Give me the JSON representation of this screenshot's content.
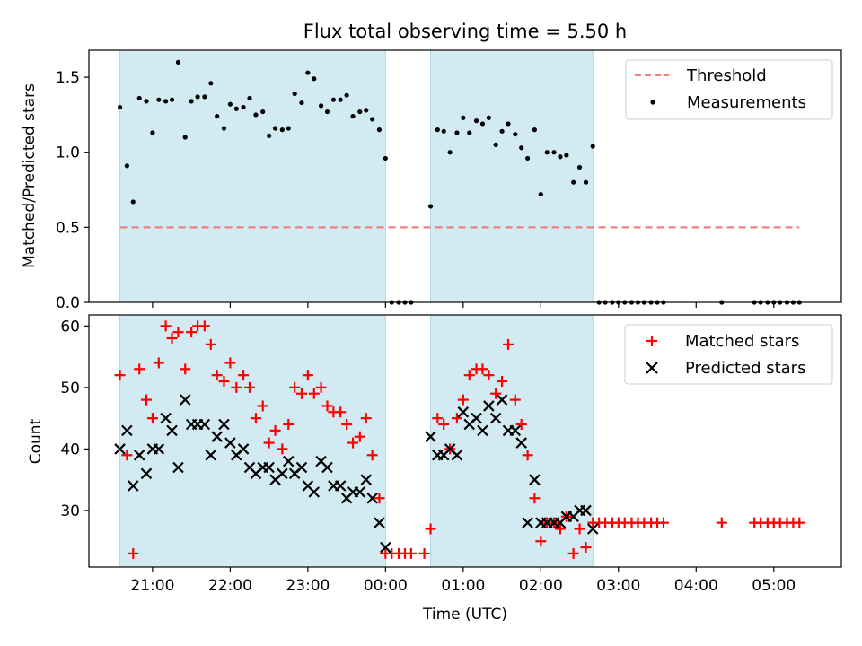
{
  "title": "Flux total observing time = 5.50 h",
  "colors": {
    "shade": "#add8e6",
    "threshold": "#f08080",
    "measurement": "#000000",
    "matched": "#ff0000",
    "predicted": "#000000"
  },
  "chart_data": [
    {
      "type": "scatter",
      "title": "Flux total observing time = 5.50 h",
      "ylabel": "Matched/Predicted stars",
      "x_axis": "time (hours, 21.0 = 21:00 UTC; values past 24 are after midnight)",
      "xlim": [
        20.18,
        29.87
      ],
      "ylim": [
        0,
        1.68
      ],
      "yticks": [
        "0.0",
        "0.5",
        "1.0",
        "1.5"
      ],
      "yticks_values": [
        0,
        0.5,
        1.0,
        1.5
      ],
      "legend": {
        "position": "upper right",
        "entries": [
          "Threshold",
          "Measurements"
        ]
      },
      "shaded_intervals": [
        [
          20.58,
          24.0
        ],
        [
          24.58,
          26.67
        ]
      ],
      "threshold": {
        "name": "Threshold",
        "y": 0.5,
        "x_range": [
          20.58,
          29.33
        ],
        "style": "dashed"
      },
      "series": [
        {
          "name": "Measurements",
          "marker": "dot",
          "x": [
            20.58,
            20.67,
            20.75,
            20.83,
            20.92,
            21.0,
            21.08,
            21.17,
            21.25,
            21.33,
            21.42,
            21.5,
            21.58,
            21.67,
            21.75,
            21.83,
            21.92,
            22.0,
            22.08,
            22.17,
            22.25,
            22.33,
            22.42,
            22.5,
            22.58,
            22.67,
            22.75,
            22.83,
            22.92,
            23.0,
            23.08,
            23.17,
            23.25,
            23.33,
            23.42,
            23.5,
            23.58,
            23.67,
            23.75,
            23.83,
            23.92,
            24.0,
            24.08,
            24.17,
            24.25,
            24.33,
            24.58,
            24.67,
            24.75,
            24.83,
            24.92,
            25.0,
            25.08,
            25.17,
            25.25,
            25.33,
            25.42,
            25.5,
            25.58,
            25.67,
            25.75,
            25.83,
            25.92,
            26.0,
            26.08,
            26.17,
            26.25,
            26.33,
            26.42,
            26.5,
            26.58,
            26.67,
            26.75,
            26.83,
            26.92,
            27.0,
            27.08,
            27.17,
            27.25,
            27.33,
            27.42,
            27.5,
            27.58,
            28.33,
            28.75,
            28.83,
            28.92,
            29.0,
            29.08,
            29.17,
            29.25,
            29.33
          ],
          "y": [
            1.3,
            0.91,
            0.67,
            1.36,
            1.34,
            1.13,
            1.35,
            1.34,
            1.35,
            1.6,
            1.1,
            1.34,
            1.37,
            1.37,
            1.46,
            1.24,
            1.16,
            1.32,
            1.29,
            1.3,
            1.36,
            1.25,
            1.27,
            1.11,
            1.16,
            1.15,
            1.16,
            1.39,
            1.33,
            1.53,
            1.49,
            1.31,
            1.27,
            1.35,
            1.35,
            1.38,
            1.24,
            1.27,
            1.28,
            1.22,
            1.15,
            0.96,
            0,
            0,
            0,
            0,
            0.64,
            1.15,
            1.14,
            1.0,
            1.13,
            1.23,
            1.13,
            1.21,
            1.19,
            1.23,
            1.05,
            1.14,
            1.19,
            1.12,
            1.03,
            0.96,
            1.15,
            0.72,
            1.0,
            1.0,
            0.97,
            0.98,
            0.8,
            0.9,
            0.8,
            1.04,
            0,
            0,
            0,
            0,
            0,
            0,
            0,
            0,
            0,
            0,
            0,
            0,
            0,
            0,
            0,
            0,
            0,
            0,
            0,
            0
          ]
        }
      ]
    },
    {
      "type": "scatter",
      "xlabel": "Time (UTC)",
      "ylabel": "Count",
      "x_axis": "time (hours, 21.0 = 21:00 UTC; values past 24 are after midnight)",
      "xlim": [
        20.18,
        29.87
      ],
      "ylim": [
        20.8,
        61.8
      ],
      "xticks": [
        "21:00",
        "22:00",
        "23:00",
        "00:00",
        "01:00",
        "02:00",
        "03:00",
        "04:00",
        "05:00"
      ],
      "xticks_values": [
        21,
        22,
        23,
        24,
        25,
        26,
        27,
        28,
        29
      ],
      "yticks": [
        "30",
        "40",
        "50",
        "60"
      ],
      "yticks_values": [
        30,
        40,
        50,
        60
      ],
      "legend": {
        "position": "upper right",
        "entries": [
          "Matched stars",
          "Predicted stars"
        ]
      },
      "shaded_intervals": [
        [
          20.58,
          24.0
        ],
        [
          24.58,
          26.67
        ]
      ],
      "series": [
        {
          "name": "Matched stars",
          "marker": "plus",
          "x": [
            20.58,
            20.67,
            20.75,
            20.83,
            20.92,
            21.0,
            21.08,
            21.17,
            21.25,
            21.33,
            21.42,
            21.5,
            21.58,
            21.67,
            21.75,
            21.83,
            21.92,
            22.0,
            22.08,
            22.17,
            22.25,
            22.33,
            22.42,
            22.5,
            22.58,
            22.67,
            22.75,
            22.83,
            22.92,
            23.0,
            23.08,
            23.17,
            23.25,
            23.33,
            23.42,
            23.5,
            23.58,
            23.67,
            23.75,
            23.83,
            23.92,
            24.0,
            24.08,
            24.17,
            24.25,
            24.33,
            24.5,
            24.58,
            24.67,
            24.75,
            24.83,
            24.92,
            25.0,
            25.08,
            25.17,
            25.25,
            25.33,
            25.42,
            25.5,
            25.58,
            25.67,
            25.75,
            25.83,
            25.92,
            26.0,
            26.08,
            26.17,
            26.25,
            26.33,
            26.42,
            26.5,
            26.58,
            26.67,
            26.75,
            26.83,
            26.92,
            27.0,
            27.08,
            27.17,
            27.25,
            27.33,
            27.42,
            27.5,
            27.58,
            28.33,
            28.75,
            28.83,
            28.92,
            29.0,
            29.08,
            29.17,
            29.25,
            29.33
          ],
          "y": [
            52,
            39,
            23,
            53,
            48,
            45,
            54,
            60,
            58,
            59,
            53,
            59,
            60,
            60,
            57,
            52,
            51,
            54,
            50,
            52,
            50,
            45,
            47,
            41,
            43,
            40,
            44,
            50,
            49,
            52,
            49,
            50,
            47,
            46,
            46,
            44,
            41,
            42,
            45,
            39,
            32,
            23,
            23,
            23,
            23,
            23,
            23,
            27,
            45,
            44,
            40,
            45,
            48,
            52,
            53,
            53,
            52,
            49,
            51,
            57,
            48,
            44,
            39,
            32,
            25,
            28,
            28,
            27,
            29,
            23,
            27,
            24,
            28,
            28,
            28,
            28,
            28,
            28,
            28,
            28,
            28,
            28,
            28,
            28,
            28,
            28,
            28,
            28,
            28,
            28,
            28,
            28,
            28
          ]
        },
        {
          "name": "Predicted stars",
          "marker": "x",
          "x": [
            20.58,
            20.67,
            20.75,
            20.83,
            20.92,
            21.0,
            21.08,
            21.17,
            21.25,
            21.33,
            21.42,
            21.5,
            21.58,
            21.67,
            21.75,
            21.83,
            21.92,
            22.0,
            22.08,
            22.17,
            22.25,
            22.33,
            22.42,
            22.5,
            22.58,
            22.67,
            22.75,
            22.83,
            22.92,
            23.0,
            23.08,
            23.17,
            23.25,
            23.33,
            23.42,
            23.5,
            23.58,
            23.67,
            23.75,
            23.83,
            23.92,
            24.0,
            24.58,
            24.67,
            24.75,
            24.83,
            24.92,
            25.0,
            25.08,
            25.17,
            25.25,
            25.33,
            25.42,
            25.5,
            25.58,
            25.67,
            25.75,
            25.83,
            25.92,
            26.0,
            26.08,
            26.17,
            26.25,
            26.33,
            26.42,
            26.5,
            26.58,
            26.67
          ],
          "y": [
            40,
            43,
            34,
            39,
            36,
            40,
            40,
            45,
            43,
            37,
            48,
            44,
            44,
            44,
            39,
            42,
            44,
            41,
            39,
            40,
            37,
            36,
            37,
            37,
            35,
            36,
            38,
            36,
            37,
            34,
            33,
            38,
            37,
            34,
            34,
            32,
            33,
            33,
            35,
            32,
            28,
            24,
            42,
            39,
            39,
            40,
            39,
            46,
            44,
            45,
            43,
            47,
            45,
            48,
            43,
            43,
            41,
            28,
            35,
            28,
            28,
            28,
            28,
            29,
            29,
            30,
            30,
            27
          ]
        }
      ]
    }
  ]
}
